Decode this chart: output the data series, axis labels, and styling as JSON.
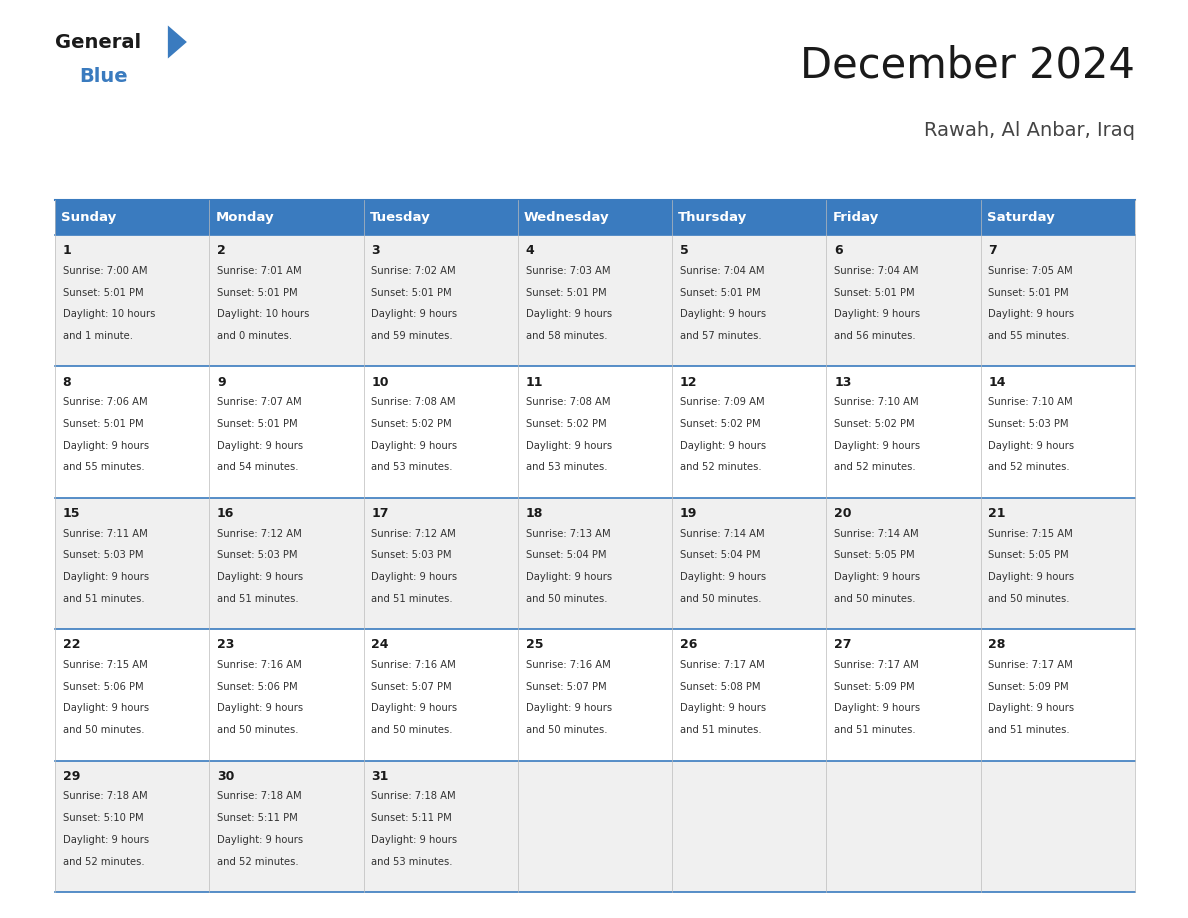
{
  "title": "December 2024",
  "subtitle": "Rawah, Al Anbar, Iraq",
  "header_bg": "#3a7bbf",
  "header_text_color": "#ffffff",
  "row_bg_odd": "#f0f0f0",
  "row_bg_even": "#ffffff",
  "border_color": "#3a7bbf",
  "day_headers": [
    "Sunday",
    "Monday",
    "Tuesday",
    "Wednesday",
    "Thursday",
    "Friday",
    "Saturday"
  ],
  "days": [
    {
      "day": 1,
      "col": 0,
      "row": 0,
      "sunrise": "7:00 AM",
      "sunset": "5:01 PM",
      "daylight": "10 hours",
      "daylight2": "and 1 minute."
    },
    {
      "day": 2,
      "col": 1,
      "row": 0,
      "sunrise": "7:01 AM",
      "sunset": "5:01 PM",
      "daylight": "10 hours",
      "daylight2": "and 0 minutes."
    },
    {
      "day": 3,
      "col": 2,
      "row": 0,
      "sunrise": "7:02 AM",
      "sunset": "5:01 PM",
      "daylight": "9 hours",
      "daylight2": "and 59 minutes."
    },
    {
      "day": 4,
      "col": 3,
      "row": 0,
      "sunrise": "7:03 AM",
      "sunset": "5:01 PM",
      "daylight": "9 hours",
      "daylight2": "and 58 minutes."
    },
    {
      "day": 5,
      "col": 4,
      "row": 0,
      "sunrise": "7:04 AM",
      "sunset": "5:01 PM",
      "daylight": "9 hours",
      "daylight2": "and 57 minutes."
    },
    {
      "day": 6,
      "col": 5,
      "row": 0,
      "sunrise": "7:04 AM",
      "sunset": "5:01 PM",
      "daylight": "9 hours",
      "daylight2": "and 56 minutes."
    },
    {
      "day": 7,
      "col": 6,
      "row": 0,
      "sunrise": "7:05 AM",
      "sunset": "5:01 PM",
      "daylight": "9 hours",
      "daylight2": "and 55 minutes."
    },
    {
      "day": 8,
      "col": 0,
      "row": 1,
      "sunrise": "7:06 AM",
      "sunset": "5:01 PM",
      "daylight": "9 hours",
      "daylight2": "and 55 minutes."
    },
    {
      "day": 9,
      "col": 1,
      "row": 1,
      "sunrise": "7:07 AM",
      "sunset": "5:01 PM",
      "daylight": "9 hours",
      "daylight2": "and 54 minutes."
    },
    {
      "day": 10,
      "col": 2,
      "row": 1,
      "sunrise": "7:08 AM",
      "sunset": "5:02 PM",
      "daylight": "9 hours",
      "daylight2": "and 53 minutes."
    },
    {
      "day": 11,
      "col": 3,
      "row": 1,
      "sunrise": "7:08 AM",
      "sunset": "5:02 PM",
      "daylight": "9 hours",
      "daylight2": "and 53 minutes."
    },
    {
      "day": 12,
      "col": 4,
      "row": 1,
      "sunrise": "7:09 AM",
      "sunset": "5:02 PM",
      "daylight": "9 hours",
      "daylight2": "and 52 minutes."
    },
    {
      "day": 13,
      "col": 5,
      "row": 1,
      "sunrise": "7:10 AM",
      "sunset": "5:02 PM",
      "daylight": "9 hours",
      "daylight2": "and 52 minutes."
    },
    {
      "day": 14,
      "col": 6,
      "row": 1,
      "sunrise": "7:10 AM",
      "sunset": "5:03 PM",
      "daylight": "9 hours",
      "daylight2": "and 52 minutes."
    },
    {
      "day": 15,
      "col": 0,
      "row": 2,
      "sunrise": "7:11 AM",
      "sunset": "5:03 PM",
      "daylight": "9 hours",
      "daylight2": "and 51 minutes."
    },
    {
      "day": 16,
      "col": 1,
      "row": 2,
      "sunrise": "7:12 AM",
      "sunset": "5:03 PM",
      "daylight": "9 hours",
      "daylight2": "and 51 minutes."
    },
    {
      "day": 17,
      "col": 2,
      "row": 2,
      "sunrise": "7:12 AM",
      "sunset": "5:03 PM",
      "daylight": "9 hours",
      "daylight2": "and 51 minutes."
    },
    {
      "day": 18,
      "col": 3,
      "row": 2,
      "sunrise": "7:13 AM",
      "sunset": "5:04 PM",
      "daylight": "9 hours",
      "daylight2": "and 50 minutes."
    },
    {
      "day": 19,
      "col": 4,
      "row": 2,
      "sunrise": "7:14 AM",
      "sunset": "5:04 PM",
      "daylight": "9 hours",
      "daylight2": "and 50 minutes."
    },
    {
      "day": 20,
      "col": 5,
      "row": 2,
      "sunrise": "7:14 AM",
      "sunset": "5:05 PM",
      "daylight": "9 hours",
      "daylight2": "and 50 minutes."
    },
    {
      "day": 21,
      "col": 6,
      "row": 2,
      "sunrise": "7:15 AM",
      "sunset": "5:05 PM",
      "daylight": "9 hours",
      "daylight2": "and 50 minutes."
    },
    {
      "day": 22,
      "col": 0,
      "row": 3,
      "sunrise": "7:15 AM",
      "sunset": "5:06 PM",
      "daylight": "9 hours",
      "daylight2": "and 50 minutes."
    },
    {
      "day": 23,
      "col": 1,
      "row": 3,
      "sunrise": "7:16 AM",
      "sunset": "5:06 PM",
      "daylight": "9 hours",
      "daylight2": "and 50 minutes."
    },
    {
      "day": 24,
      "col": 2,
      "row": 3,
      "sunrise": "7:16 AM",
      "sunset": "5:07 PM",
      "daylight": "9 hours",
      "daylight2": "and 50 minutes."
    },
    {
      "day": 25,
      "col": 3,
      "row": 3,
      "sunrise": "7:16 AM",
      "sunset": "5:07 PM",
      "daylight": "9 hours",
      "daylight2": "and 50 minutes."
    },
    {
      "day": 26,
      "col": 4,
      "row": 3,
      "sunrise": "7:17 AM",
      "sunset": "5:08 PM",
      "daylight": "9 hours",
      "daylight2": "and 51 minutes."
    },
    {
      "day": 27,
      "col": 5,
      "row": 3,
      "sunrise": "7:17 AM",
      "sunset": "5:09 PM",
      "daylight": "9 hours",
      "daylight2": "and 51 minutes."
    },
    {
      "day": 28,
      "col": 6,
      "row": 3,
      "sunrise": "7:17 AM",
      "sunset": "5:09 PM",
      "daylight": "9 hours",
      "daylight2": "and 51 minutes."
    },
    {
      "day": 29,
      "col": 0,
      "row": 4,
      "sunrise": "7:18 AM",
      "sunset": "5:10 PM",
      "daylight": "9 hours",
      "daylight2": "and 52 minutes."
    },
    {
      "day": 30,
      "col": 1,
      "row": 4,
      "sunrise": "7:18 AM",
      "sunset": "5:11 PM",
      "daylight": "9 hours",
      "daylight2": "and 52 minutes."
    },
    {
      "day": 31,
      "col": 2,
      "row": 4,
      "sunrise": "7:18 AM",
      "sunset": "5:11 PM",
      "daylight": "9 hours",
      "daylight2": "and 53 minutes."
    }
  ],
  "logo_text1": "General",
  "logo_text2": "Blue",
  "logo_color1": "#1a1a1a",
  "logo_color2": "#3a7bbf",
  "fig_width": 11.88,
  "fig_height": 9.18,
  "dpi": 100
}
